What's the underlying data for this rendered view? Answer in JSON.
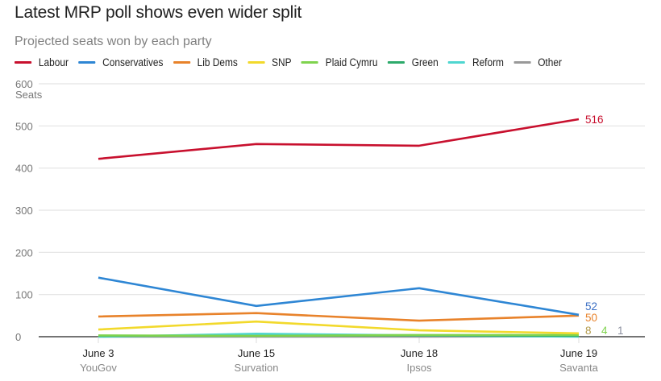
{
  "chart_data": {
    "type": "line",
    "title": "Latest MRP poll shows even wider split",
    "subtitle": "Projected seats won by each party",
    "ylabel": "Seats",
    "xlabel": "",
    "ylim": [
      0,
      600
    ],
    "yticks": [
      0,
      100,
      200,
      300,
      400,
      500,
      600
    ],
    "ytick_labels": [
      "0",
      "100",
      "200",
      "300",
      "400",
      "500",
      "600"
    ],
    "grid": true,
    "legend_position": "top-left",
    "categories": [
      {
        "date": "June 3",
        "pollster": "YouGov"
      },
      {
        "date": "June 15",
        "pollster": "Survation"
      },
      {
        "date": "June 18",
        "pollster": "Ipsos"
      },
      {
        "date": "June 19",
        "pollster": "Savanta"
      }
    ],
    "series": [
      {
        "name": "Labour",
        "color": "#c8102e",
        "values": [
          422,
          457,
          453,
          516
        ],
        "end_label": "516",
        "label_color": "#c8102e"
      },
      {
        "name": "Conservatives",
        "color": "#2e86d4",
        "values": [
          140,
          73,
          115,
          52
        ],
        "end_label": "52",
        "label_color": "#3b6fc4"
      },
      {
        "name": "Lib Dems",
        "color": "#e8822a",
        "values": [
          48,
          56,
          38,
          50
        ],
        "end_label": "50",
        "label_color": "#e8822a"
      },
      {
        "name": "SNP",
        "color": "#f2d92b",
        "values": [
          17,
          36,
          15,
          8
        ],
        "end_label": "8",
        "label_color": "#b39a4a"
      },
      {
        "name": "Plaid Cymru",
        "color": "#7fd34e",
        "values": [
          3,
          2,
          4,
          4
        ],
        "end_label": "4",
        "label_color": "#7fd34e"
      },
      {
        "name": "Green",
        "color": "#2daa6b",
        "values": [
          2,
          2,
          3,
          2
        ],
        "end_label": "",
        "label_color": "#2daa6b"
      },
      {
        "name": "Reform",
        "color": "#4fd6d0",
        "values": [
          0,
          7,
          3,
          0
        ],
        "end_label": "",
        "label_color": "#4fd6d0"
      },
      {
        "name": "Other",
        "color": "#999999",
        "values": [
          0,
          0,
          0,
          1
        ],
        "end_label": "1",
        "label_color": "#8a8f9e"
      }
    ]
  }
}
